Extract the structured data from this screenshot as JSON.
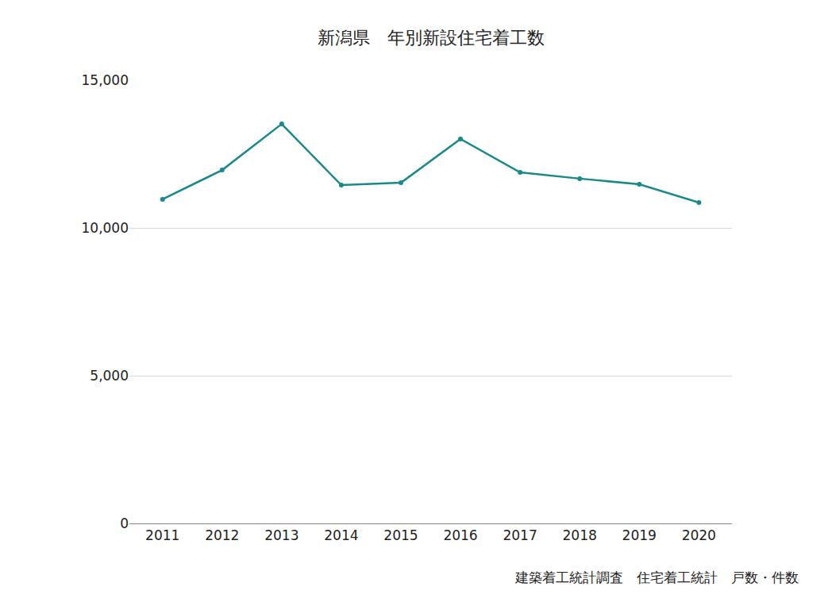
{
  "chart_data": {
    "type": "line",
    "title": "新潟県　年別新設住宅着工数",
    "annotations": [
      "建築着工統計調査　住宅着工統計　戸数・件数"
    ],
    "categories": [
      "2011",
      "2012",
      "2013",
      "2014",
      "2015",
      "2016",
      "2017",
      "2018",
      "2019",
      "2020"
    ],
    "values": [
      10970,
      11960,
      13520,
      11450,
      11530,
      13010,
      11880,
      11670,
      11480,
      10860
    ],
    "color": "#19898b",
    "marker": "circle",
    "line_style": "solid",
    "ylim": [
      0,
      15000
    ],
    "yticks": [
      0,
      {
        "value": 5000,
        "label": "5,000"
      },
      {
        "value": 10000,
        "label": "10,000"
      },
      {
        "value": 15000,
        "label": "15,000"
      }
    ],
    "grid": true
  }
}
